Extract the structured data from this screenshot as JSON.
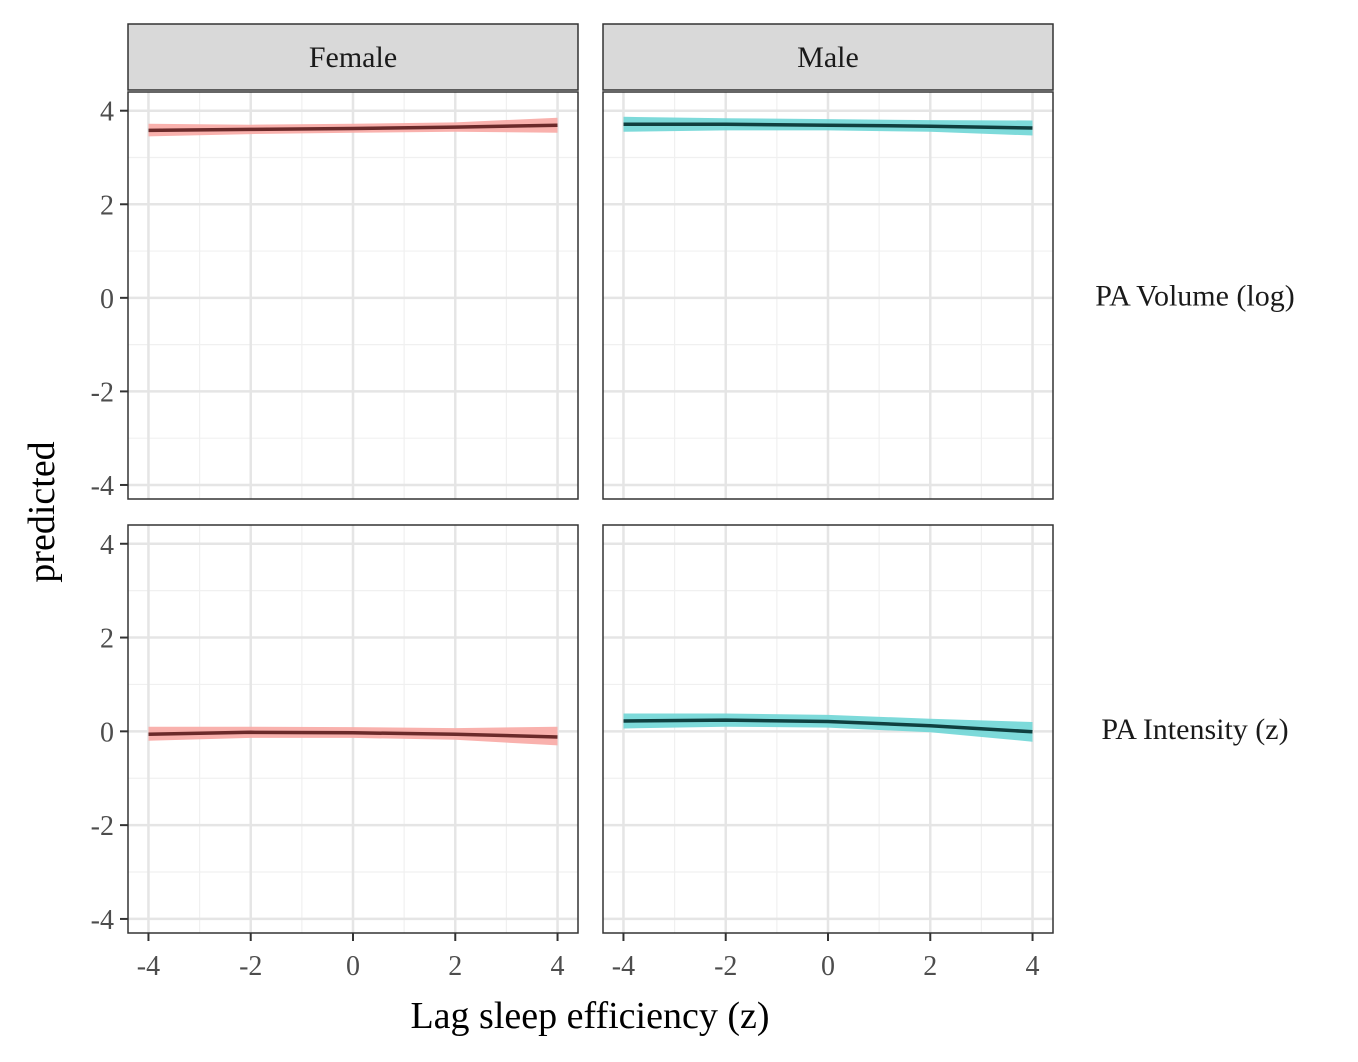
{
  "chart_data": {
    "type": "line",
    "xlabel": "Lag sleep efficiency (z)",
    "ylabel": "predicted",
    "xlim": [
      -4.4,
      4.4
    ],
    "ylim": [
      -4.3,
      4.4
    ],
    "x_ticks": [
      "-4",
      "-2",
      "0",
      "2",
      "4"
    ],
    "y_ticks": [
      "-4",
      "-2",
      "0",
      "2",
      "4"
    ],
    "column_facets": [
      "Female",
      "Male"
    ],
    "row_facets": [
      "PA Volume (log)",
      "PA Intensity (z)"
    ],
    "grid": true,
    "colors": {
      "Female": {
        "ribbon": "#f8a9a4",
        "line": "#6b2a2a"
      },
      "Male": {
        "ribbon": "#6fd6d6",
        "line": "#0f3f3f"
      }
    },
    "panels": [
      {
        "row": "PA Volume (log)",
        "column": "Female",
        "x": [
          -4,
          -2,
          0,
          2,
          4
        ],
        "y": [
          3.58,
          3.6,
          3.62,
          3.65,
          3.69
        ],
        "lower": [
          3.45,
          3.5,
          3.53,
          3.55,
          3.53
        ],
        "upper": [
          3.72,
          3.7,
          3.72,
          3.75,
          3.85
        ]
      },
      {
        "row": "PA Volume (log)",
        "column": "Male",
        "x": [
          -4,
          -2,
          0,
          2,
          4
        ],
        "y": [
          3.71,
          3.71,
          3.69,
          3.67,
          3.63
        ],
        "lower": [
          3.55,
          3.58,
          3.58,
          3.55,
          3.47
        ],
        "upper": [
          3.87,
          3.84,
          3.82,
          3.8,
          3.79
        ]
      },
      {
        "row": "PA Intensity (z)",
        "column": "Female",
        "x": [
          -4,
          -2,
          0,
          2,
          4
        ],
        "y": [
          -0.06,
          -0.02,
          -0.03,
          -0.06,
          -0.12
        ],
        "lower": [
          -0.2,
          -0.14,
          -0.14,
          -0.18,
          -0.3
        ],
        "upper": [
          0.1,
          0.1,
          0.09,
          0.07,
          0.1
        ]
      },
      {
        "row": "PA Intensity (z)",
        "column": "Male",
        "x": [
          -4,
          -2,
          0,
          2,
          4
        ],
        "y": [
          0.22,
          0.24,
          0.21,
          0.12,
          -0.01
        ],
        "lower": [
          0.06,
          0.1,
          0.08,
          -0.02,
          -0.22
        ],
        "upper": [
          0.38,
          0.38,
          0.35,
          0.27,
          0.2
        ]
      }
    ]
  }
}
